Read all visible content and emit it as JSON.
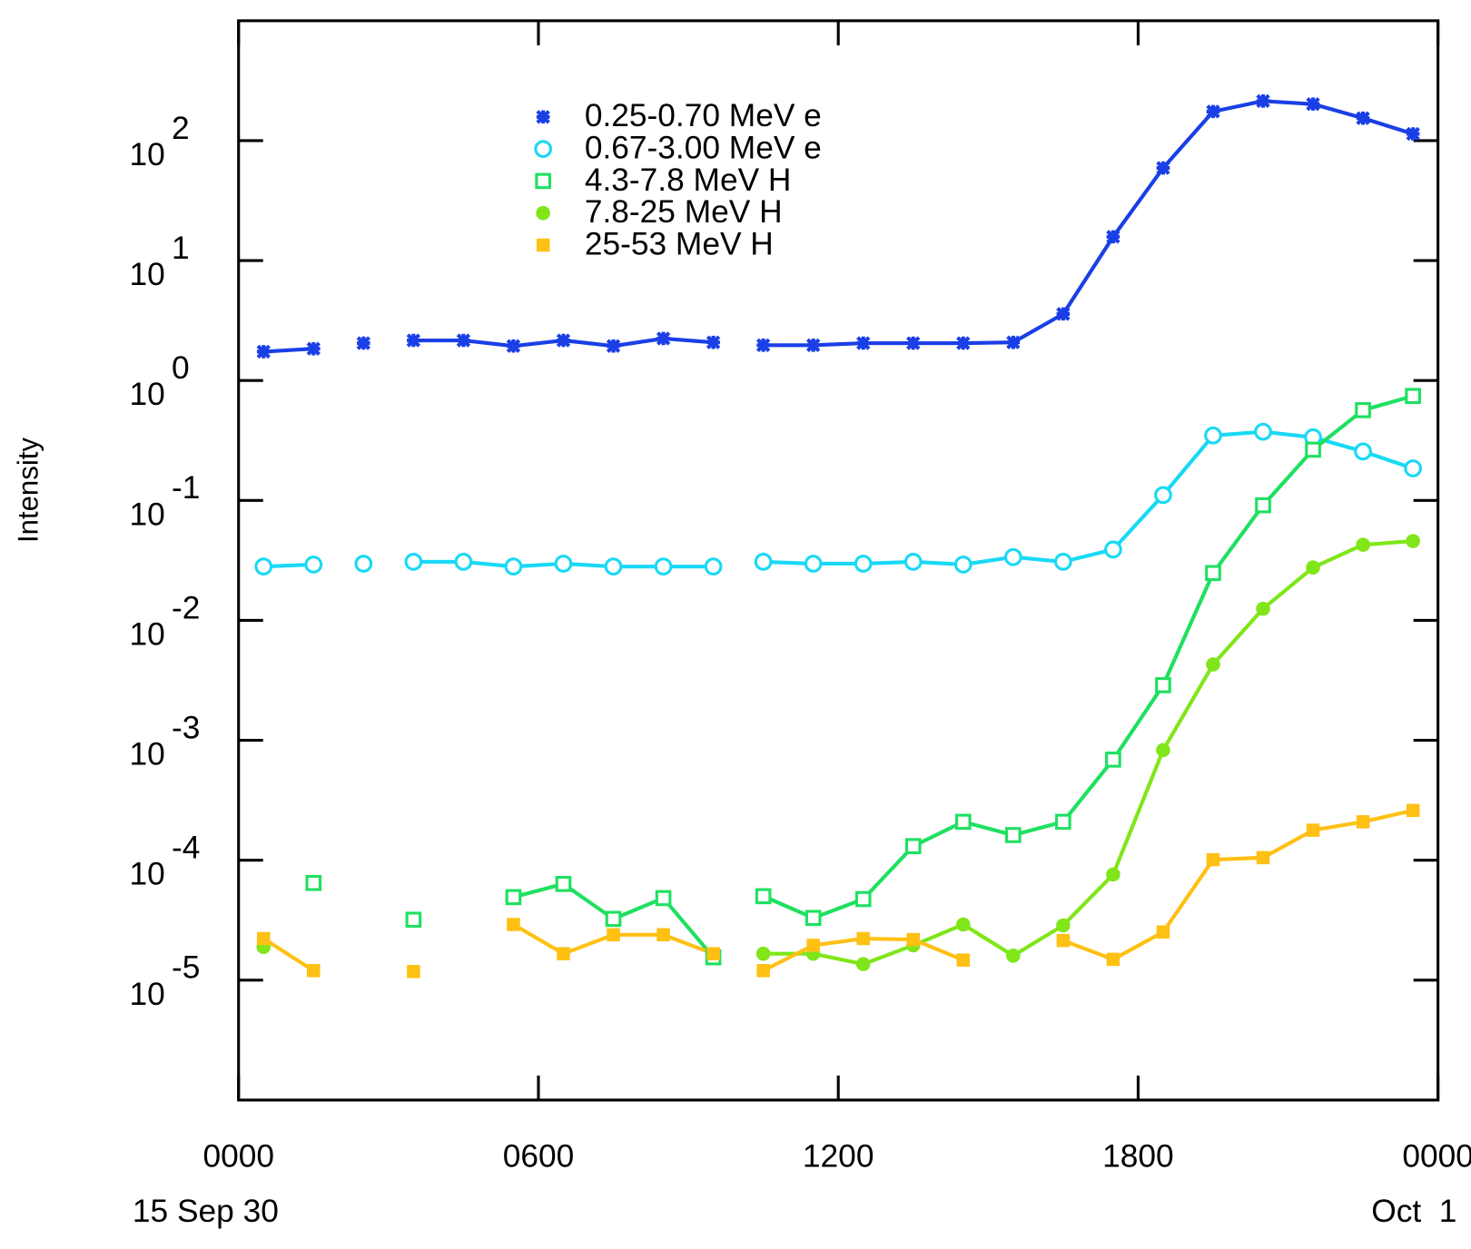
{
  "chart_data": {
    "type": "line",
    "y_label": "Intensity",
    "annotations": [
      "15 Sep 30",
      "Oct  1"
    ],
    "log_y": true,
    "legend": "upper left",
    "x": [
      0.5,
      1.5,
      2,
      2.5,
      3,
      3.5,
      4.5,
      5.5,
      6.5,
      7.5,
      8.5,
      9.5,
      10,
      10.5,
      11.5,
      12.5,
      13.5,
      14.5,
      15.5,
      16.5,
      17.5,
      18.5,
      19.5,
      20.5,
      21.5,
      22.5,
      23.5
    ],
    "xlim": [
      0,
      24
    ],
    "xticks": [
      {
        "value": 0,
        "label": "0000"
      },
      {
        "value": 6,
        "label": "0600"
      },
      {
        "value": 12,
        "label": "1200"
      },
      {
        "value": 18,
        "label": "1800"
      },
      {
        "value": 24,
        "label": "0000"
      }
    ],
    "ylim": [
      1e-06,
      1000
    ],
    "yticks": [
      {
        "value": 100,
        "label": "10",
        "exponent": "2"
      },
      {
        "value": 10,
        "label": "10",
        "exponent": "1"
      },
      {
        "value": 1,
        "label": "10",
        "exponent": "0"
      },
      {
        "value": 0.1,
        "label": "10",
        "exponent": "-1"
      },
      {
        "value": 0.01,
        "label": "10",
        "exponent": "-2"
      },
      {
        "value": 0.001,
        "label": "10",
        "exponent": "-3"
      },
      {
        "value": 0.0001,
        "label": "10",
        "exponent": "-4"
      },
      {
        "value": 1e-05,
        "label": "10",
        "exponent": "-5"
      }
    ],
    "series": [
      {
        "name": "0.25-0.70 MeV e",
        "color": "#1a3fe6",
        "marker": "asterisk",
        "values": [
          1.74,
          1.84,
          null,
          2.05,
          null,
          2.16,
          2.16,
          1.94,
          2.16,
          1.94,
          2.24,
          2.08,
          null,
          1.97,
          1.97,
          2.05,
          2.05,
          2.05,
          2.08,
          3.59,
          15.8,
          59.2,
          175,
          214,
          202,
          154,
          114
        ]
      },
      {
        "name": "0.67-3.00 MeV e",
        "color": "#19d9f5",
        "marker": "open-circle",
        "values": [
          0.0281,
          0.0292,
          null,
          0.0297,
          null,
          0.0308,
          0.0308,
          0.0281,
          0.0297,
          0.0281,
          0.0281,
          0.0281,
          null,
          0.0308,
          0.0297,
          0.0297,
          0.0308,
          0.0292,
          0.0337,
          0.0308,
          0.039,
          0.111,
          0.348,
          0.374,
          0.336,
          0.256,
          0.185
        ]
      },
      {
        "name": "4.3-7.8 MeV H",
        "color": "#1fe060",
        "marker": "open-square",
        "values": [
          null,
          6.46e-05,
          null,
          null,
          null,
          3.19e-05,
          null,
          4.92e-05,
          6.34e-05,
          3.24e-05,
          4.83e-05,
          1.55e-05,
          null,
          5.01e-05,
          3.3e-05,
          4.74e-05,
          0.000131,
          0.000209,
          0.000162,
          0.000209,
          0.00069,
          0.00288,
          0.0248,
          0.0912,
          0.265,
          0.566,
          0.743
        ]
      },
      {
        "name": "7.8-25 MeV H",
        "color": "#80e619",
        "marker": "filled-circle",
        "values": [
          1.89e-05,
          null,
          null,
          null,
          null,
          null,
          null,
          null,
          null,
          null,
          null,
          null,
          null,
          1.66e-05,
          1.66e-05,
          1.36e-05,
          1.95e-05,
          2.91e-05,
          1.6e-05,
          2.86e-05,
          7.6e-05,
          0.000828,
          0.00429,
          0.0125,
          0.0276,
          0.0427,
          0.0458
        ]
      },
      {
        "name": "25-53 MeV H",
        "color": "#ffc014",
        "marker": "filled-square",
        "values": [
          2.22e-05,
          1.2e-05,
          null,
          null,
          null,
          1.18e-05,
          null,
          2.91e-05,
          1.66e-05,
          2.39e-05,
          2.39e-05,
          1.66e-05,
          null,
          1.2e-05,
          1.95e-05,
          2.22e-05,
          2.18e-05,
          1.47e-05,
          null,
          2.14e-05,
          1.49e-05,
          2.52e-05,
          0.000101,
          0.000105,
          0.000178,
          0.000209,
          0.00026
        ]
      }
    ]
  }
}
